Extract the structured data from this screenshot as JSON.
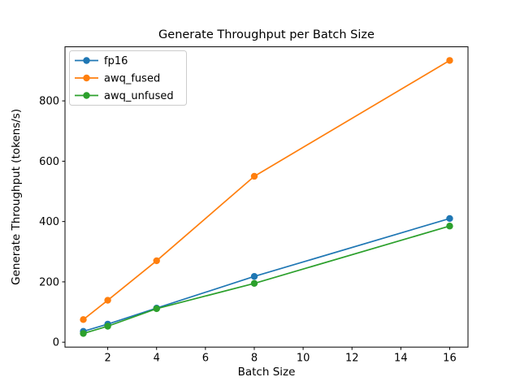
{
  "chart_data": {
    "type": "line",
    "title": "Generate Throughput per Batch Size",
    "xlabel": "Batch Size",
    "ylabel": "Generate Throughput (tokens/s)",
    "x": [
      1,
      2,
      4,
      8,
      16
    ],
    "series": [
      {
        "name": "fp16",
        "color": "#1f77b4",
        "values": [
          36,
          60,
          113,
          218,
          410
        ]
      },
      {
        "name": "awq_fused",
        "color": "#ff7f0e",
        "values": [
          75,
          139,
          270,
          550,
          934
        ]
      },
      {
        "name": "awq_unfused",
        "color": "#2ca02c",
        "values": [
          29,
          53,
          111,
          195,
          385
        ]
      }
    ],
    "xticks": [
      2,
      4,
      6,
      8,
      10,
      12,
      14,
      16
    ],
    "yticks": [
      0,
      200,
      400,
      600,
      800
    ],
    "legend_position": "upper left",
    "legend_border_color": "#cccccc",
    "marker": "o",
    "grid": false,
    "background": "#ffffff",
    "text_color": "#000000",
    "axis_color": "#000000"
  }
}
